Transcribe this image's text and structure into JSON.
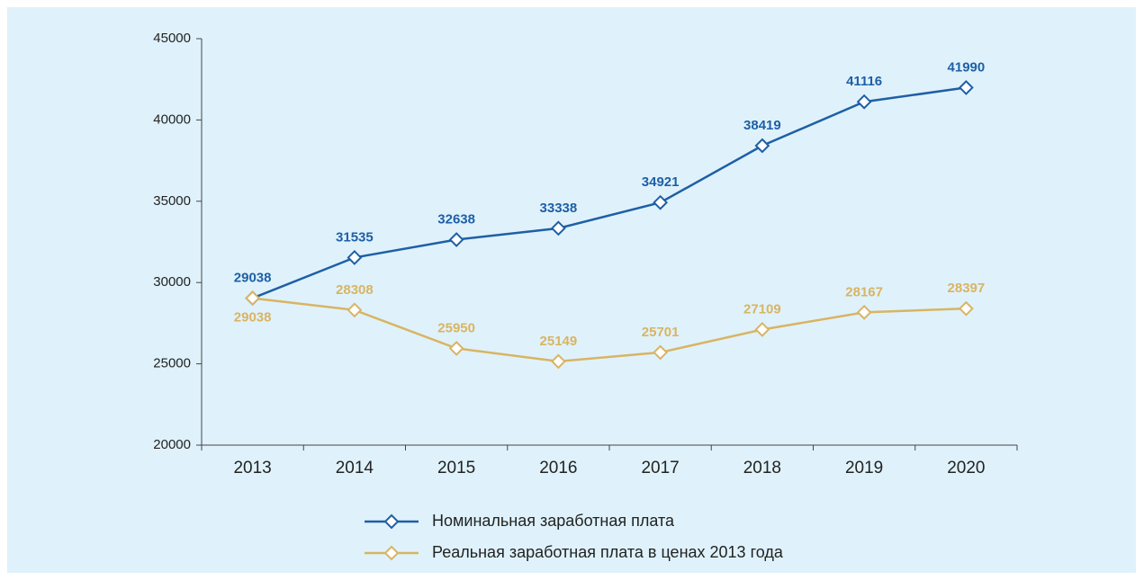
{
  "chart_data": {
    "type": "line",
    "categories": [
      "2013",
      "2014",
      "2015",
      "2016",
      "2017",
      "2018",
      "2019",
      "2020"
    ],
    "series": [
      {
        "name": "Номинальная заработная плата",
        "color": "#1f5fa6",
        "values": [
          29038,
          31535,
          32638,
          33338,
          34921,
          38419,
          41116,
          41990
        ]
      },
      {
        "name": "Реальная заработная плата в ценах 2013 года",
        "color": "#d9b463",
        "values": [
          29038,
          28308,
          25950,
          25149,
          25701,
          27109,
          28167,
          28397
        ]
      }
    ],
    "ylim": [
      20000,
      45000
    ],
    "yticks": [
      20000,
      25000,
      30000,
      35000,
      40000,
      45000
    ]
  }
}
